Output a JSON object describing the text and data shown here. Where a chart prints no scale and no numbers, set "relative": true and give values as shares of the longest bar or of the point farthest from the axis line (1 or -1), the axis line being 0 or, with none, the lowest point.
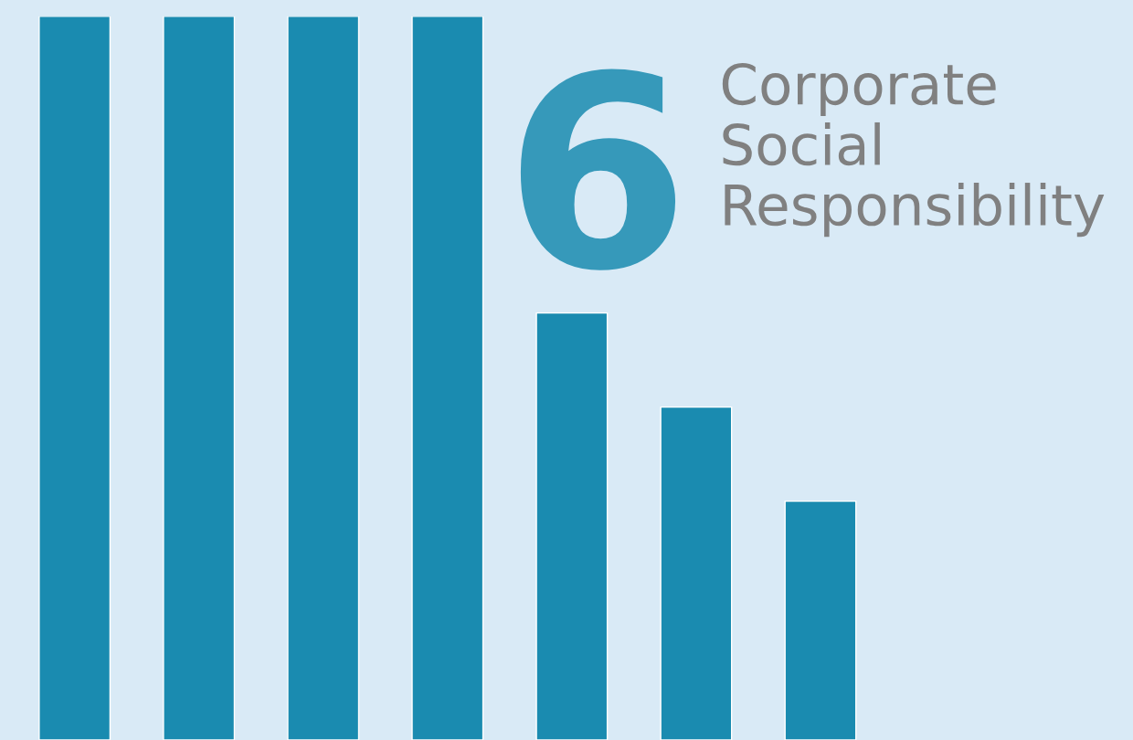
{
  "chart_data": {
    "type": "bar",
    "title": "Corporate Social Responsibility",
    "annotations": [
      "6"
    ],
    "relative": true,
    "categories": [
      null,
      null,
      null,
      null,
      null,
      null,
      null
    ],
    "values": [
      1,
      1,
      1,
      1,
      0.59,
      0.46,
      0.33
    ],
    "color": "#1a8bb0"
  }
}
